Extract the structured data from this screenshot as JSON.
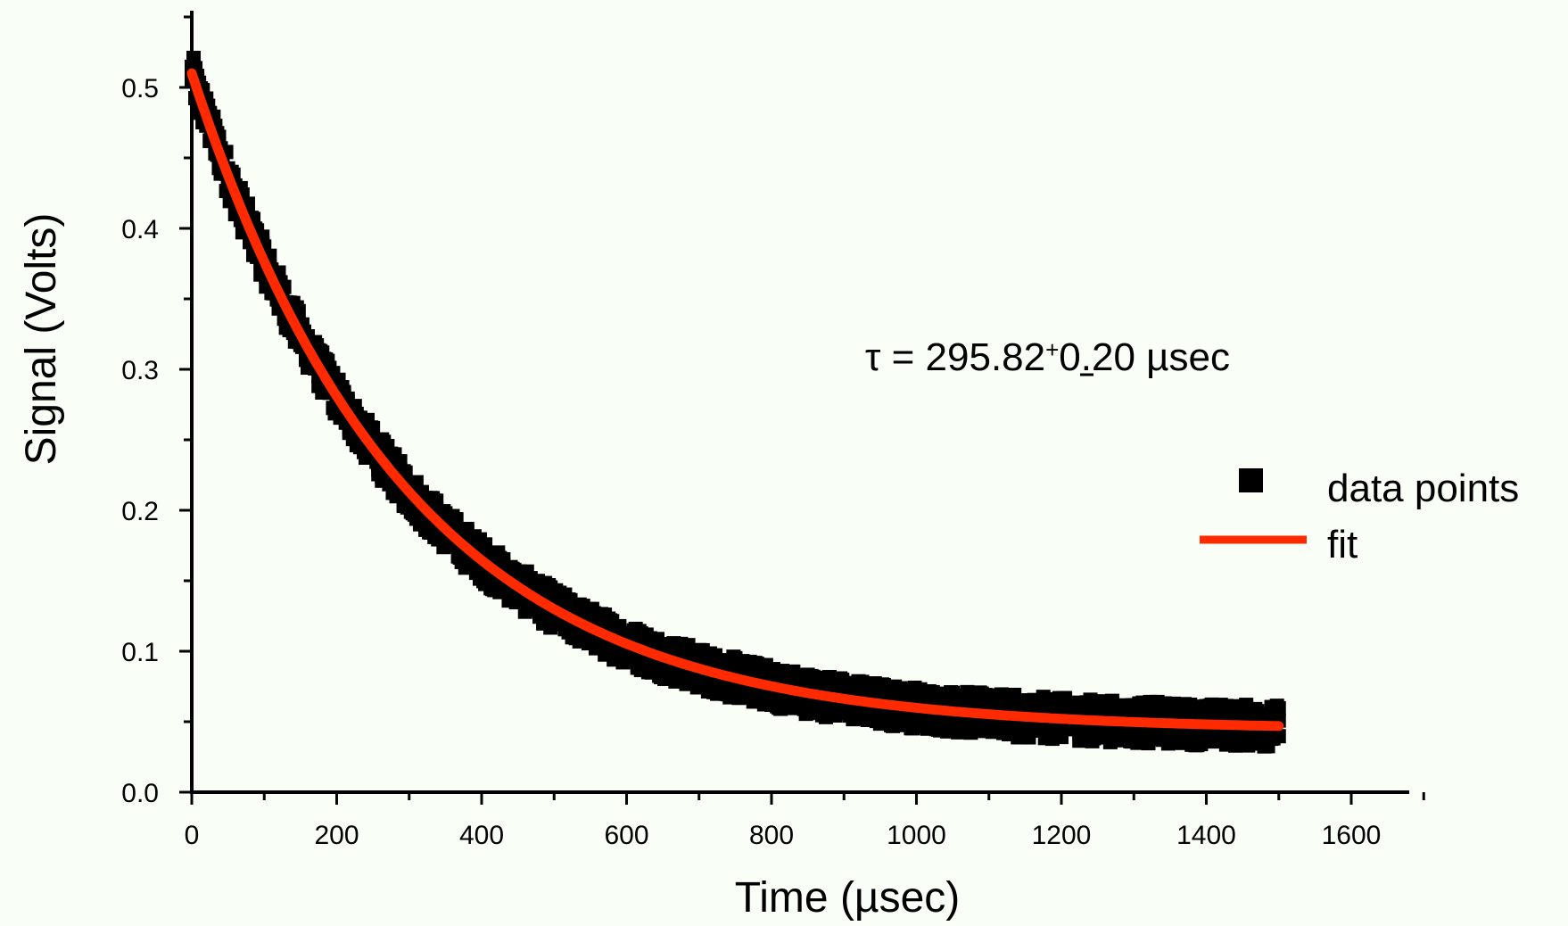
{
  "colors": {
    "background": "#f9fef6",
    "data": "#000000",
    "fit": "#ff2a00",
    "title": "#ff1010"
  },
  "chart_data": {
    "type": "scatter",
    "title": "",
    "xlabel": "Time (µsec)",
    "ylabel": "Signal (Volts)",
    "xlim": [
      0,
      1700
    ],
    "ylim": [
      0,
      0.55
    ],
    "xticks": [
      0,
      200,
      400,
      600,
      800,
      1000,
      1200,
      1400,
      1600
    ],
    "yticks": [
      0.0,
      0.1,
      0.2,
      0.3,
      0.4,
      0.5
    ],
    "xtick_labels": [
      "0",
      "200",
      "400",
      "600",
      "800",
      "1000",
      "1200",
      "1400",
      "1600"
    ],
    "ytick_labels": [
      "0.0",
      "0.1",
      "0.2",
      "0.3",
      "0.4",
      "0.5"
    ],
    "grid": false,
    "legend_position": "right",
    "series": [
      {
        "name": "data points",
        "kind": "scatter",
        "model": {
          "x_start": 0,
          "x_end": 1500,
          "amplitude": 0.466,
          "tau": 295.82,
          "offset": 0.044
        },
        "x": [
          0,
          25,
          50,
          75,
          100,
          150,
          200,
          250,
          300,
          350,
          400,
          450,
          500,
          600,
          700,
          800,
          900,
          1000,
          1100,
          1200,
          1300,
          1400,
          1500
        ],
        "y": [
          0.51,
          0.472,
          0.437,
          0.405,
          0.376,
          0.325,
          0.283,
          0.25,
          0.221,
          0.197,
          0.179,
          0.163,
          0.151,
          0.125,
          0.106,
          0.09,
          0.078,
          0.068,
          0.062,
          0.056,
          0.053,
          0.05,
          0.048
        ]
      },
      {
        "name": "fit",
        "kind": "line",
        "model": {
          "x_start": 0,
          "x_end": 1500,
          "amplitude": 0.466,
          "tau": 295.82,
          "offset": 0.044
        }
      }
    ],
    "annotation": {
      "prefix": "τ = 295.82",
      "pm": "+",
      "suffix": "0.20 µsec"
    }
  }
}
